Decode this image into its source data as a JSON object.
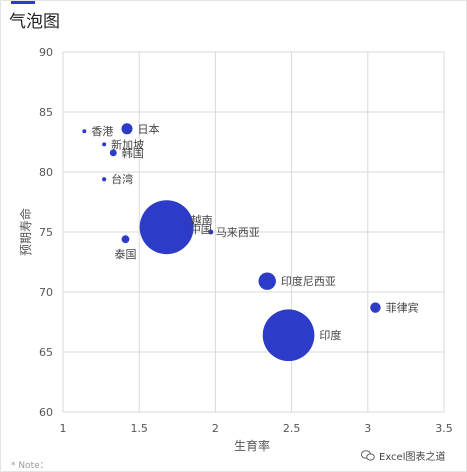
{
  "chart_data": {
    "type": "bubble",
    "title": "气泡图",
    "xlabel": "生育率",
    "ylabel": "预期寿命",
    "xlim": [
      1,
      3.5
    ],
    "ylim": [
      60,
      90
    ],
    "xticks": [
      "1",
      "1.5",
      "2",
      "2.5",
      "3",
      "3.5"
    ],
    "yticks": [
      "60",
      "65",
      "70",
      "75",
      "80",
      "85",
      "90"
    ],
    "grid": true,
    "bubble_color": "#2d3cc8",
    "points": [
      {
        "label": "香港",
        "x": 1.14,
        "y": 83.4,
        "size": 0.6
      },
      {
        "label": "新加坡",
        "x": 1.27,
        "y": 82.3,
        "size": 0.3
      },
      {
        "label": "日本",
        "x": 1.42,
        "y": 83.6,
        "size": 10
      },
      {
        "label": "韩国",
        "x": 1.33,
        "y": 81.6,
        "size": 4
      },
      {
        "label": "台湾",
        "x": 1.27,
        "y": 79.4,
        "size": 1.5
      },
      {
        "label": "泰国",
        "x": 1.41,
        "y": 74.4,
        "size": 5
      },
      {
        "label": "越南",
        "x": 1.68,
        "y": 75.4,
        "size": 240
      },
      {
        "label": "中国",
        "x": 1.97,
        "y": 75.0,
        "size": 2
      },
      {
        "label": "马来西亚",
        "x": 1.97,
        "y": 75.0,
        "size": 0
      },
      {
        "label": "印度尼西亚",
        "x": 2.34,
        "y": 70.9,
        "size": 25
      },
      {
        "label": "菲律宾",
        "x": 3.05,
        "y": 68.7,
        "size": 9
      },
      {
        "label": "印度",
        "x": 2.48,
        "y": 66.4,
        "size": 220
      }
    ]
  },
  "note": "* Note：",
  "watermark": "Excel图表之道"
}
